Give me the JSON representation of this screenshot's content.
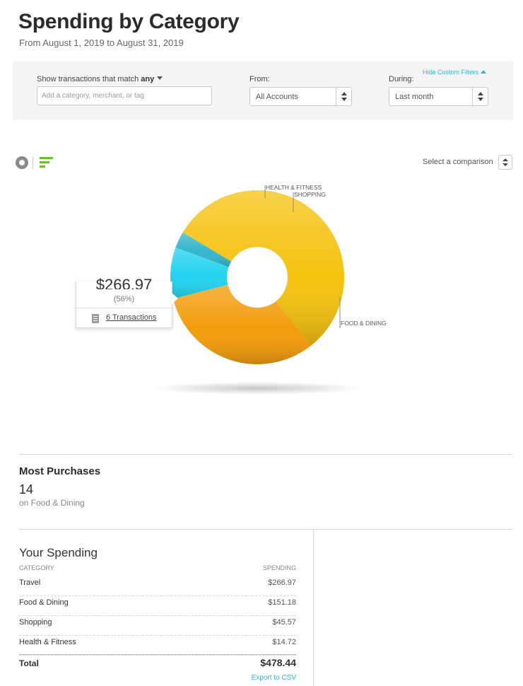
{
  "header": {
    "title": "Spending by Category",
    "date_range": "From August 1, 2019 to August 31, 2019"
  },
  "filters": {
    "hide_label": "Hide Custom Filters",
    "match_label": "Show transactions that match",
    "match_value": "any",
    "search_placeholder": "Add a category, merchant, or tag",
    "from_label": "From:",
    "from_value": "All Accounts",
    "during_label": "During:",
    "during_value": "Last month"
  },
  "toolbar": {
    "comparison_label": "Select a comparison"
  },
  "colors": {
    "accent": "#2cb6d6",
    "bar_icon": "#6cbf2f",
    "travel": "#f5c20e",
    "food_dining": "#f39c0a",
    "shopping": "#22d3f0",
    "health_fitness": "#33b6cc"
  },
  "chart_data": {
    "type": "pie",
    "donut": true,
    "series": [
      {
        "name": "Travel",
        "value": 266.97
      },
      {
        "name": "Food & Dining",
        "value": 151.18,
        "label": "FOOD & DINING"
      },
      {
        "name": "Shopping",
        "value": 45.57,
        "label": "SHOPPING"
      },
      {
        "name": "Health & Fitness",
        "value": 14.72,
        "label": "HEALTH & FITNESS"
      }
    ],
    "tooltip": {
      "amount": "$266.97",
      "percent": "(56%)",
      "transactions": "6 Transactions"
    }
  },
  "most_purchases": {
    "title": "Most Purchases",
    "count": "14",
    "subtitle": "on Food & Dining"
  },
  "spending": {
    "title": "Your Spending",
    "col_category": "CATEGORY",
    "col_spending": "SPENDING",
    "rows": [
      {
        "category": "Travel",
        "amount": "$266.97"
      },
      {
        "category": "Food & Dining",
        "amount": "$151.18"
      },
      {
        "category": "Shopping",
        "amount": "$45.57"
      },
      {
        "category": "Health & Fitness",
        "amount": "$14.72"
      }
    ],
    "total_label": "Total",
    "total_amount": "$478.44",
    "export_label": "Export to CSV"
  }
}
